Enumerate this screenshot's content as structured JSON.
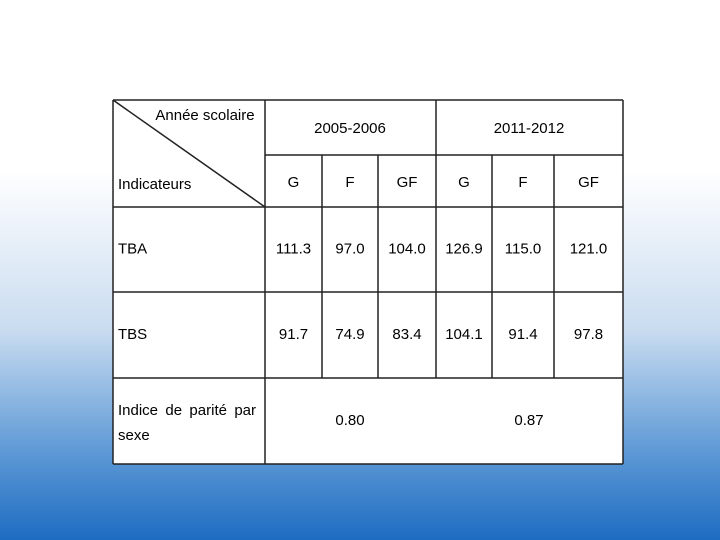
{
  "header": {
    "corner_top": "Année scolaire",
    "corner_bottom": "Indicateurs",
    "years": [
      "2005-2006",
      "2011-2012"
    ],
    "subheaders": [
      "G",
      "F",
      "GF",
      "G",
      "F",
      "GF"
    ]
  },
  "table": {
    "rows": [
      {
        "label": "TBA",
        "values": [
          "111.3",
          "97.0",
          "104.0",
          "126.9",
          "115.0",
          "121.0"
        ]
      },
      {
        "label": "TBS",
        "values": [
          "91.7",
          "74.9",
          "83.4",
          "104.1",
          "91.4",
          "97.8"
        ]
      }
    ],
    "parity": {
      "label": "Indice de parité par sexe",
      "values": [
        "0.80",
        "0.87"
      ]
    }
  }
}
